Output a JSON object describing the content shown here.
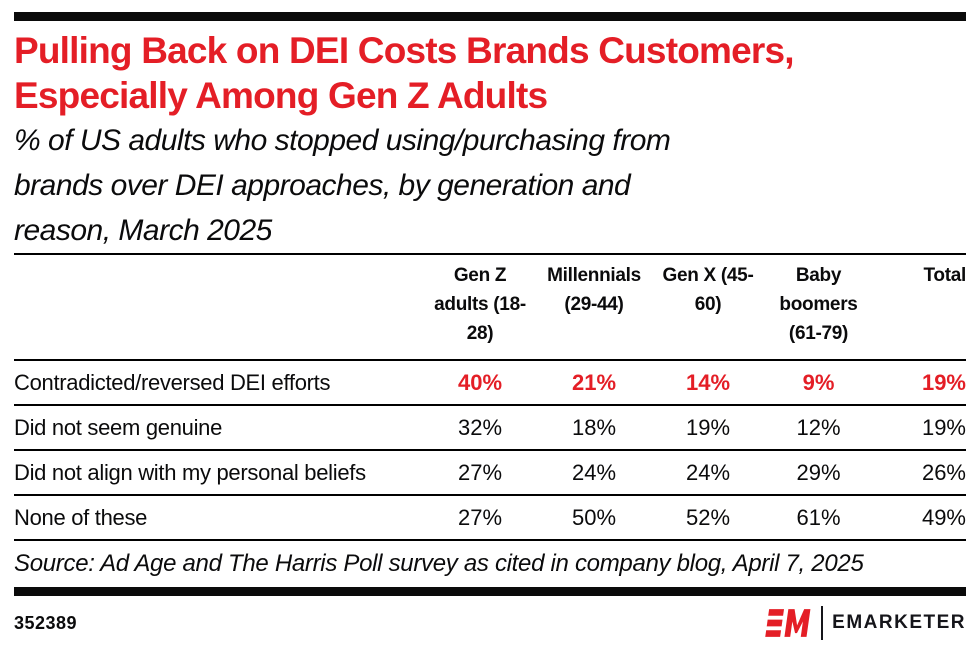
{
  "colors": {
    "accent_red": "#e41e26",
    "text_black": "#0b0b0c",
    "rule_black": "#000000"
  },
  "header": {
    "title_lines": [
      "Pulling Back on DEI Costs Brands Customers,",
      "Especially Among Gen Z Adults"
    ],
    "subtitle_lines": [
      "% of US adults who stopped using/purchasing from",
      "brands over DEI approaches, by generation and",
      "reason, March 2025"
    ]
  },
  "chart_data": {
    "type": "table",
    "title": "Pulling Back on DEI Costs Brands Customers, Especially Among Gen Z Adults",
    "subtitle": "% of US adults who stopped using/purchasing from brands over DEI approaches, by generation and reason, March 2025",
    "unit": "%",
    "columns": [
      "Gen Z adults (18-28)",
      "Millennials (29-44)",
      "Gen X (45-60)",
      "Baby boomers (61-79)",
      "Total"
    ],
    "rows": [
      {
        "label": "Contradicted/reversed DEI efforts",
        "values": [
          40,
          21,
          14,
          9,
          19
        ],
        "highlight": true
      },
      {
        "label": "Did not seem genuine",
        "values": [
          32,
          18,
          19,
          12,
          19
        ],
        "highlight": false
      },
      {
        "label": "Did not align with my personal beliefs",
        "values": [
          27,
          24,
          24,
          29,
          26
        ],
        "highlight": false
      },
      {
        "label": "None of these",
        "values": [
          27,
          50,
          52,
          61,
          49
        ],
        "highlight": false
      }
    ]
  },
  "source": "Source: Ad Age and The Harris Poll survey as cited in company blog, April 7, 2025",
  "footer": {
    "chart_id": "352389",
    "brand_name": "EMARKETER"
  }
}
